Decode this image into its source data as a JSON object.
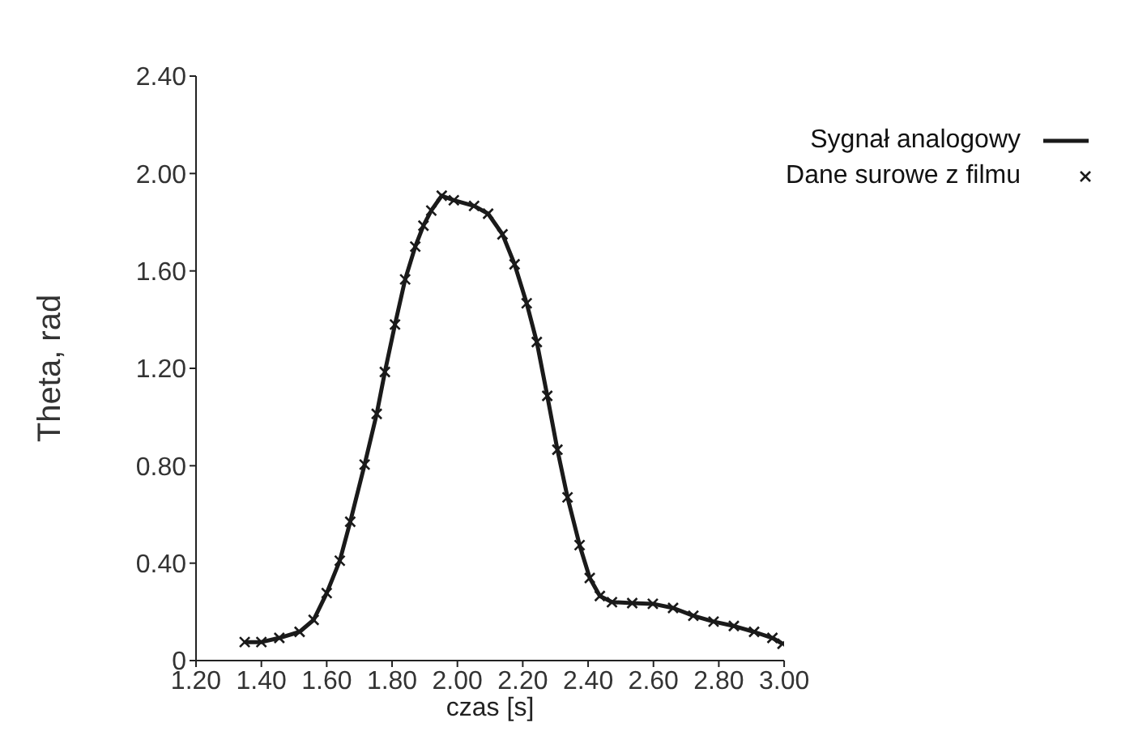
{
  "chart_data": {
    "type": "line",
    "xlabel": "czas [s]",
    "ylabel": "Theta, rad",
    "x": [
      1.349,
      1.4,
      1.455,
      1.517,
      1.56,
      1.6,
      1.64,
      1.672,
      1.716,
      1.753,
      1.778,
      1.809,
      1.84,
      1.871,
      1.896,
      1.92,
      1.952,
      1.989,
      2.051,
      2.094,
      2.138,
      2.175,
      2.212,
      2.243,
      2.275,
      2.306,
      2.337,
      2.374,
      2.405,
      2.436,
      2.473,
      2.535,
      2.598,
      2.66,
      2.722,
      2.784,
      2.846,
      2.908,
      2.964,
      2.995
    ],
    "series": [
      {
        "name": "Sygnał analogowy",
        "color": "#1a1a1a",
        "marker": "none",
        "values": [
          0.076,
          0.076,
          0.093,
          0.118,
          0.167,
          0.277,
          0.41,
          0.57,
          0.805,
          1.013,
          1.185,
          1.38,
          1.565,
          1.7,
          1.786,
          1.848,
          1.909,
          1.89,
          1.867,
          1.835,
          1.75,
          1.627,
          1.467,
          1.308,
          1.087,
          0.866,
          0.67,
          0.474,
          0.339,
          0.265,
          0.24,
          0.236,
          0.233,
          0.216,
          0.184,
          0.16,
          0.142,
          0.118,
          0.093,
          0.069
        ]
      },
      {
        "name": "Dane surowe z filmu",
        "type": "scatter",
        "color": "#1a1a1a",
        "marker": "cross",
        "values": [
          0.076,
          0.076,
          0.093,
          0.118,
          0.167,
          0.277,
          0.41,
          0.57,
          0.805,
          1.013,
          1.185,
          1.38,
          1.565,
          1.7,
          1.786,
          1.848,
          1.909,
          1.89,
          1.867,
          1.835,
          1.75,
          1.627,
          1.467,
          1.308,
          1.087,
          0.866,
          0.67,
          0.474,
          0.339,
          0.265,
          0.24,
          0.236,
          0.233,
          0.216,
          0.184,
          0.16,
          0.142,
          0.118,
          0.093,
          0.069
        ]
      }
    ],
    "xlim": [
      1.2,
      3.0
    ],
    "xticks": [
      {
        "value": 1.2,
        "label": "1.20"
      },
      {
        "value": 1.4,
        "label": "1.40"
      },
      {
        "value": 1.6,
        "label": "1.60"
      },
      {
        "value": 1.8,
        "label": "1.80"
      },
      {
        "value": 2.0,
        "label": "2.00"
      },
      {
        "value": 2.2,
        "label": "2.20"
      },
      {
        "value": 2.4,
        "label": "2.40"
      },
      {
        "value": 2.6,
        "label": "2.60"
      },
      {
        "value": 2.8,
        "label": "2.80"
      },
      {
        "value": 3.0,
        "label": "3.00"
      }
    ],
    "ylim": [
      0,
      2.4
    ],
    "yticks": [
      0,
      {
        "value": 0.4,
        "label": "0.40"
      },
      {
        "value": 0.8,
        "label": "0.80"
      },
      {
        "value": 1.2,
        "label": "1.20"
      },
      {
        "value": 1.6,
        "label": "1.60"
      },
      {
        "value": 2.0,
        "label": "2.00"
      },
      {
        "value": 2.4,
        "label": "2.40"
      }
    ],
    "grid": false,
    "legend": "top right"
  }
}
